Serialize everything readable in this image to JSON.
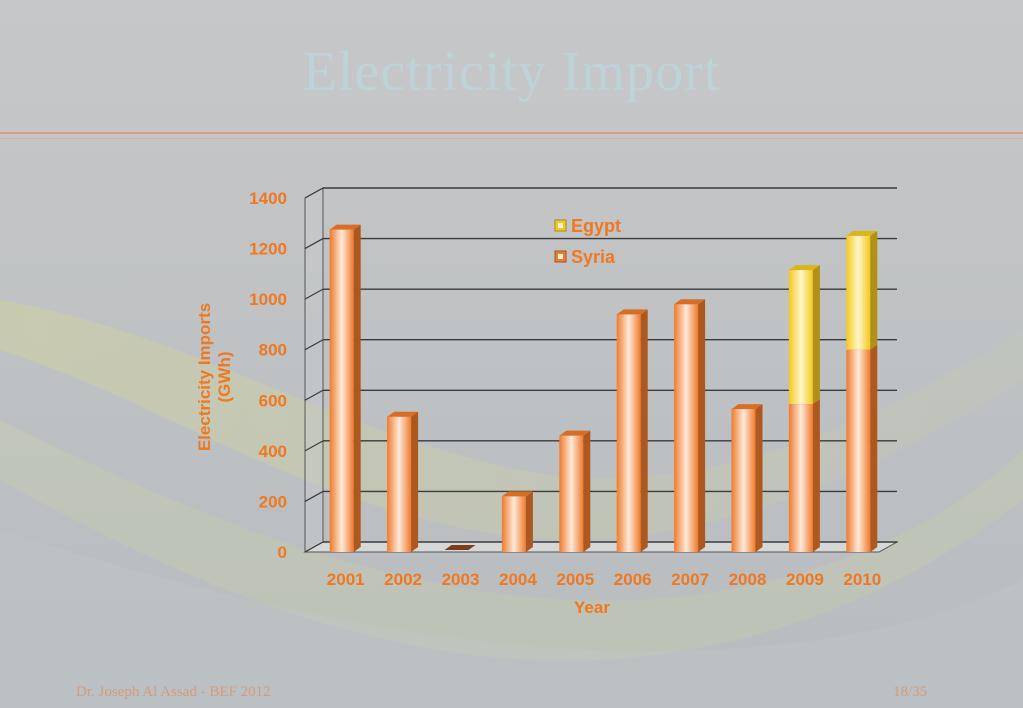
{
  "slide": {
    "title": "Electricity Import",
    "footer_left": "Dr. Joseph Al Assad - BEF 2012",
    "footer_right": "18/35"
  },
  "colors": {
    "syria": "#f07a2a",
    "egypt": "#f4c81e",
    "axis_text": "#f07820",
    "gridline": "#3a3a3a"
  },
  "chart_data": {
    "type": "bar",
    "stacked": true,
    "three_d": true,
    "categories": [
      "2001",
      "2002",
      "2003",
      "2004",
      "2005",
      "2006",
      "2007",
      "2008",
      "2009",
      "2010"
    ],
    "series": [
      {
        "name": "Syria",
        "values": [
          1275,
          535,
          0,
          220,
          460,
          940,
          980,
          565,
          585,
          800
        ]
      },
      {
        "name": "Egypt",
        "values": [
          0,
          0,
          0,
          0,
          0,
          0,
          0,
          0,
          530,
          450
        ]
      }
    ],
    "xlabel": "Year",
    "ylabel": "Electricity Imports\n(GWh)",
    "ylim": [
      0,
      1400
    ],
    "yticks": [
      0,
      200,
      400,
      600,
      800,
      1000,
      1200,
      1400
    ],
    "grid": true,
    "legend": "top-center",
    "legend_order": [
      "Egypt",
      "Syria"
    ]
  }
}
